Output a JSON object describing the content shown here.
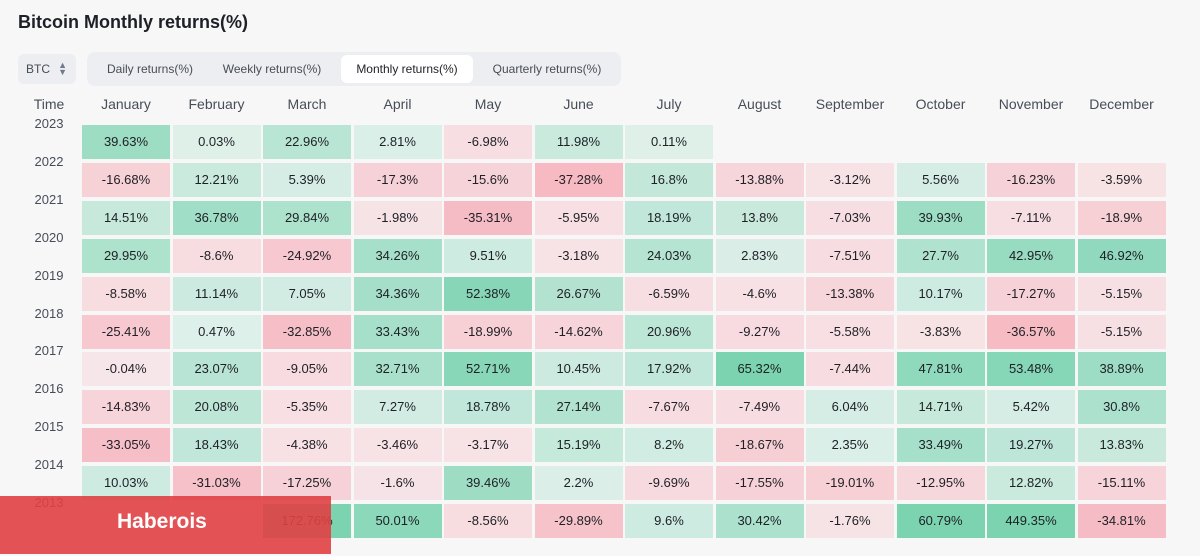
{
  "title": "Bitcoin Monthly returns(%)",
  "asset_select": {
    "value": "BTC",
    "icon": "chevron-up-down-icon"
  },
  "tabs": [
    {
      "label": "Daily returns(%)",
      "active": false
    },
    {
      "label": "Weekly returns(%)",
      "active": false
    },
    {
      "label": "Monthly returns(%)",
      "active": true
    },
    {
      "label": "Quarterly returns(%)",
      "active": false
    }
  ],
  "watermark": "Haberois",
  "colors": {
    "positive": "#2ebd85",
    "negative": "#f6465d",
    "neutral": "#ffffff"
  },
  "chart_data": {
    "type": "heatmap",
    "title": "Bitcoin Monthly returns(%)",
    "row_header": "Time",
    "columns": [
      "January",
      "February",
      "March",
      "April",
      "May",
      "June",
      "July",
      "August",
      "September",
      "October",
      "November",
      "December"
    ],
    "rows": [
      {
        "year": "2023",
        "values": [
          "39.63%",
          "0.03%",
          "22.96%",
          "2.81%",
          "-6.98%",
          "11.98%",
          "0.11%",
          "",
          "",
          "",
          "",
          ""
        ]
      },
      {
        "year": "2022",
        "values": [
          "-16.68%",
          "12.21%",
          "5.39%",
          "-17.3%",
          "-15.6%",
          "-37.28%",
          "16.8%",
          "-13.88%",
          "-3.12%",
          "5.56%",
          "-16.23%",
          "-3.59%"
        ]
      },
      {
        "year": "2021",
        "values": [
          "14.51%",
          "36.78%",
          "29.84%",
          "-1.98%",
          "-35.31%",
          "-5.95%",
          "18.19%",
          "13.8%",
          "-7.03%",
          "39.93%",
          "-7.11%",
          "-18.9%"
        ]
      },
      {
        "year": "2020",
        "values": [
          "29.95%",
          "-8.6%",
          "-24.92%",
          "34.26%",
          "9.51%",
          "-3.18%",
          "24.03%",
          "2.83%",
          "-7.51%",
          "27.7%",
          "42.95%",
          "46.92%"
        ]
      },
      {
        "year": "2019",
        "values": [
          "-8.58%",
          "11.14%",
          "7.05%",
          "34.36%",
          "52.38%",
          "26.67%",
          "-6.59%",
          "-4.6%",
          "-13.38%",
          "10.17%",
          "-17.27%",
          "-5.15%"
        ]
      },
      {
        "year": "2018",
        "values": [
          "-25.41%",
          "0.47%",
          "-32.85%",
          "33.43%",
          "-18.99%",
          "-14.62%",
          "20.96%",
          "-9.27%",
          "-5.58%",
          "-3.83%",
          "-36.57%",
          "-5.15%"
        ]
      },
      {
        "year": "2017",
        "values": [
          "-0.04%",
          "23.07%",
          "-9.05%",
          "32.71%",
          "52.71%",
          "10.45%",
          "17.92%",
          "65.32%",
          "-7.44%",
          "47.81%",
          "53.48%",
          "38.89%"
        ]
      },
      {
        "year": "2016",
        "values": [
          "-14.83%",
          "20.08%",
          "-5.35%",
          "7.27%",
          "18.78%",
          "27.14%",
          "-7.67%",
          "-7.49%",
          "6.04%",
          "14.71%",
          "5.42%",
          "30.8%"
        ]
      },
      {
        "year": "2015",
        "values": [
          "-33.05%",
          "18.43%",
          "-4.38%",
          "-3.46%",
          "-3.17%",
          "15.19%",
          "8.2%",
          "-18.67%",
          "2.35%",
          "33.49%",
          "19.27%",
          "13.83%"
        ]
      },
      {
        "year": "2014",
        "values": [
          "10.03%",
          "-31.03%",
          "-17.25%",
          "-1.6%",
          "39.46%",
          "2.2%",
          "-9.69%",
          "-17.55%",
          "-19.01%",
          "-12.95%",
          "12.82%",
          "-15.11%"
        ]
      },
      {
        "year": "2013",
        "values": [
          "",
          "",
          "172.76%",
          "50.01%",
          "-8.56%",
          "-29.89%",
          "9.6%",
          "30.42%",
          "-1.76%",
          "60.79%",
          "449.35%",
          "-34.81%"
        ]
      }
    ]
  }
}
